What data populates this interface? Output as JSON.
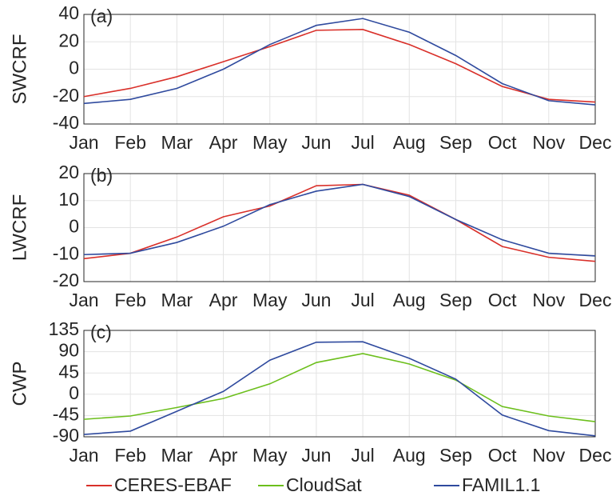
{
  "chart_data": [
    {
      "type": "line",
      "annotation": "(a)",
      "y_label": "SWCRF",
      "categories": [
        "Jan",
        "Feb",
        "Mar",
        "Apr",
        "May",
        "Jun",
        "Jul",
        "Aug",
        "Sep",
        "Oct",
        "Nov",
        "Dec"
      ],
      "ylim": [
        -40,
        40
      ],
      "yticks": [
        -40,
        -20,
        0,
        20,
        40
      ],
      "grid": true,
      "series": [
        {
          "name": "CERES-EBAF",
          "color": "#d9302a",
          "values": [
            -20,
            -14,
            -5.5,
            5.5,
            16.5,
            28.4,
            29,
            18,
            4,
            -12.6,
            -22,
            -24
          ]
        },
        {
          "name": "FAMIL1.1",
          "color": "#2f4a9e",
          "values": [
            -25,
            -22,
            -14,
            0,
            18,
            32,
            37,
            27,
            10,
            -10.5,
            -23,
            -26
          ]
        }
      ]
    },
    {
      "type": "line",
      "annotation": "(b)",
      "y_label": "LWCRF",
      "categories": [
        "Jan",
        "Feb",
        "Mar",
        "Apr",
        "May",
        "Jun",
        "Jul",
        "Aug",
        "Sep",
        "Oct",
        "Nov",
        "Dec"
      ],
      "ylim": [
        -20,
        20
      ],
      "yticks": [
        -20,
        -10,
        0,
        10,
        20
      ],
      "grid": true,
      "series": [
        {
          "name": "CERES-EBAF",
          "color": "#d9302a",
          "values": [
            -11.5,
            -9.5,
            -3.5,
            4,
            8,
            15.5,
            16,
            12,
            3,
            -7,
            -11,
            -12.5
          ]
        },
        {
          "name": "FAMIL1.1",
          "color": "#2f4a9e",
          "values": [
            -10,
            -9.5,
            -5.5,
            0.5,
            8.5,
            13.5,
            16,
            11.5,
            3,
            -4.5,
            -9.5,
            -10.5
          ]
        }
      ]
    },
    {
      "type": "line",
      "annotation": "(c)",
      "y_label": "CWP",
      "categories": [
        "Jan",
        "Feb",
        "Mar",
        "Apr",
        "May",
        "Jun",
        "Jul",
        "Aug",
        "Sep",
        "Oct",
        "Nov",
        "Dec"
      ],
      "ylim": [
        -90,
        135
      ],
      "yticks": [
        -90,
        -45,
        0,
        45,
        90,
        135
      ],
      "grid": true,
      "series": [
        {
          "name": "CloudSat",
          "color": "#6cbf1c",
          "values": [
            -53,
            -46,
            -28,
            -9,
            22,
            67,
            86,
            64,
            30,
            -26,
            -46,
            -58
          ]
        },
        {
          "name": "FAMIL1.1",
          "color": "#2f4a9e",
          "values": [
            -85,
            -78,
            -36,
            6,
            72,
            110,
            111,
            76,
            32,
            -44,
            -77,
            -88
          ]
        }
      ]
    }
  ]
}
